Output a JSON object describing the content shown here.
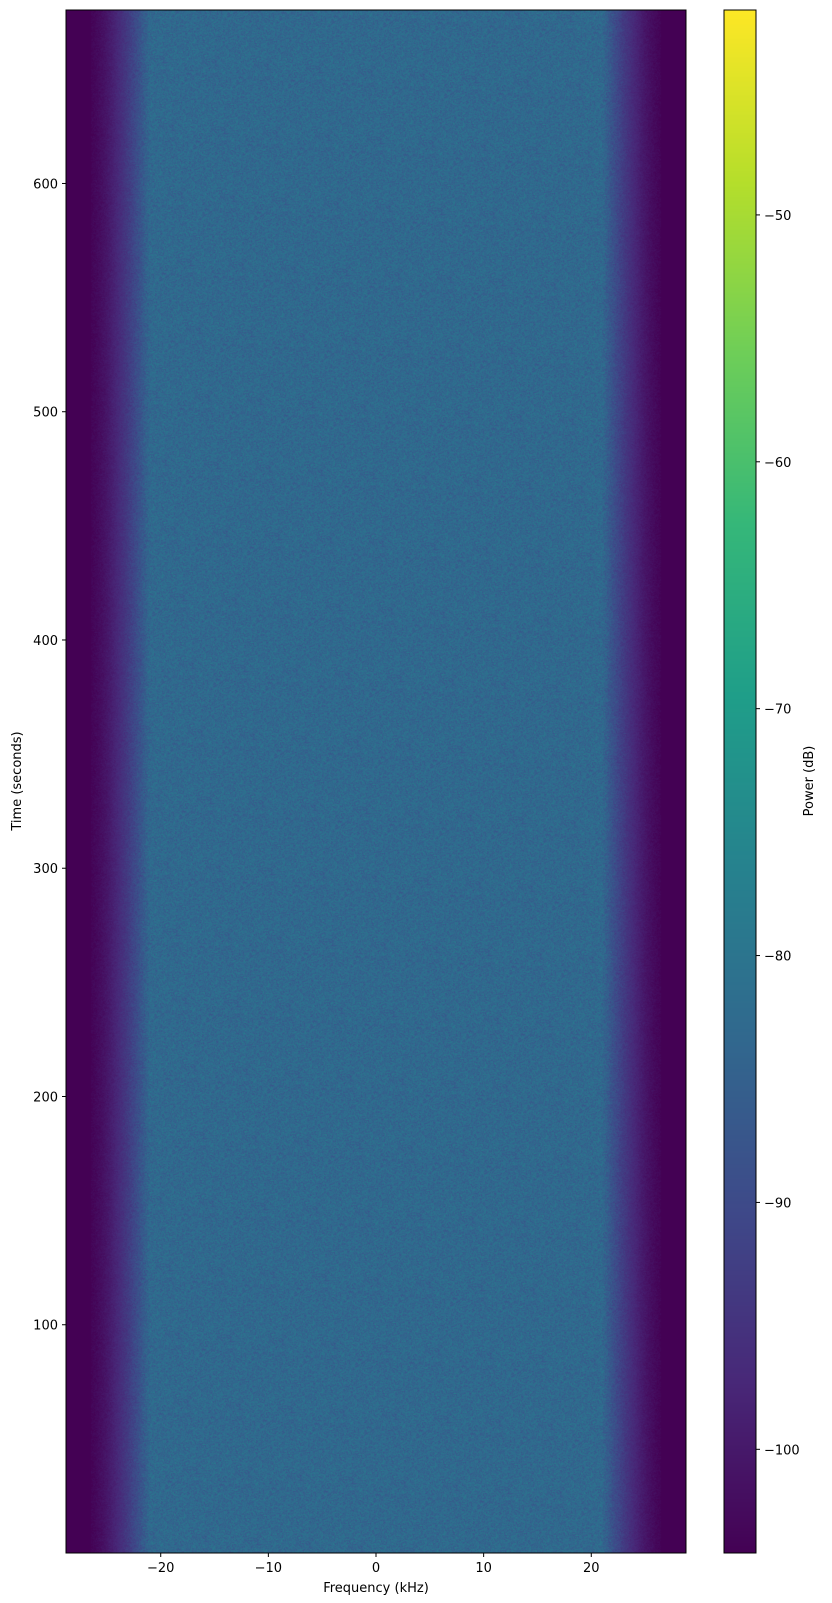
{
  "chart_data": {
    "type": "heatmap",
    "subtype": "spectrogram",
    "title": "",
    "xlabel": "Frequency (kHz)",
    "ylabel": "Time (seconds)",
    "xlim": [
      -28.8,
      28.8
    ],
    "ylim": [
      0,
      676
    ],
    "xticks": [
      -20,
      -10,
      0,
      10,
      20
    ],
    "xtick_labels": [
      "−20",
      "−10",
      "0",
      "10",
      "20"
    ],
    "yticks": [
      100,
      200,
      300,
      400,
      500,
      600
    ],
    "ytick_labels": [
      "100",
      "200",
      "300",
      "400",
      "500",
      "600"
    ],
    "colormap": "viridis",
    "colorbar": {
      "label": "Power (dB)",
      "range": [
        -104.2,
        -41.7
      ],
      "ticks": [
        -50,
        -60,
        -70,
        -80,
        -90,
        -100
      ],
      "tick_labels": [
        "−50",
        "−60",
        "−70",
        "−80",
        "−90",
        "−100"
      ]
    },
    "power_profile": {
      "passband_level_db": -83,
      "noise_floor_db": -104,
      "passband_edge_khz": 24,
      "rolloff_end_khz": 27
    },
    "grid": false
  }
}
